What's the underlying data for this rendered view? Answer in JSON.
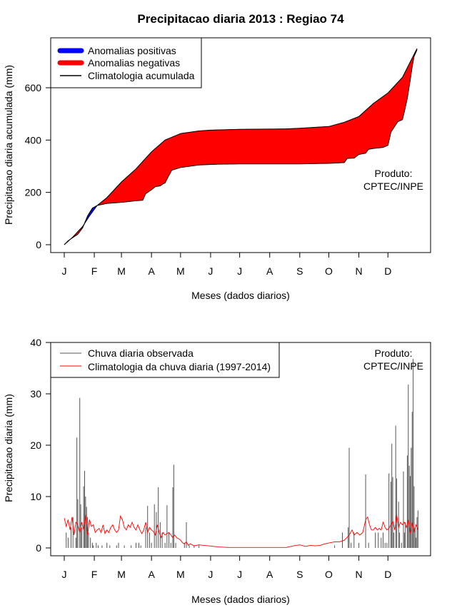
{
  "title": "Precipitacao diaria 2013 : Regiao 74",
  "credit": {
    "line1": "Produto:",
    "line2": "CPTEC/INPE"
  },
  "colors": {
    "positive": "#0000ff",
    "negative": "#ff0000",
    "clim": "#000000",
    "observed": "#555555",
    "clim_daily": "#ff0000"
  },
  "chart_data": [
    {
      "type": "area",
      "name": "accumulated",
      "xlabel": "Meses (dados diarios)",
      "ylabel": "Precipitacao diaria acumulada (mm)",
      "xlim": [
        1,
        365
      ],
      "ylim": [
        0,
        760
      ],
      "yticks": [
        0,
        200,
        400,
        600
      ],
      "months": [
        "J",
        "F",
        "M",
        "A",
        "M",
        "J",
        "J",
        "A",
        "S",
        "O",
        "N",
        "D"
      ],
      "month_days": [
        1,
        32,
        60,
        91,
        121,
        152,
        182,
        213,
        244,
        274,
        305,
        335
      ],
      "legend": [
        "Anomalias positivas",
        "Anomalias negativas",
        "Climatologia acumulada"
      ],
      "climatology_accumulated": [
        [
          1,
          0
        ],
        [
          10,
          30
        ],
        [
          20,
          70
        ],
        [
          27,
          110
        ],
        [
          35,
          150
        ],
        [
          45,
          180
        ],
        [
          60,
          240
        ],
        [
          75,
          290
        ],
        [
          91,
          355
        ],
        [
          105,
          400
        ],
        [
          121,
          425
        ],
        [
          140,
          435
        ],
        [
          152,
          438
        ],
        [
          182,
          441
        ],
        [
          213,
          442
        ],
        [
          230,
          443
        ],
        [
          244,
          445
        ],
        [
          274,
          452
        ],
        [
          290,
          468
        ],
        [
          305,
          490
        ],
        [
          320,
          540
        ],
        [
          335,
          580
        ],
        [
          350,
          640
        ],
        [
          365,
          750
        ]
      ],
      "observed_accumulated": [
        [
          1,
          0
        ],
        [
          5,
          15
        ],
        [
          15,
          40
        ],
        [
          20,
          65
        ],
        [
          25,
          110
        ],
        [
          30,
          140
        ],
        [
          35,
          150
        ],
        [
          45,
          158
        ],
        [
          60,
          162
        ],
        [
          75,
          168
        ],
        [
          82,
          170
        ],
        [
          85,
          195
        ],
        [
          91,
          210
        ],
        [
          95,
          222
        ],
        [
          100,
          225
        ],
        [
          103,
          233
        ],
        [
          105,
          236
        ],
        [
          108,
          258
        ],
        [
          112,
          285
        ],
        [
          121,
          295
        ],
        [
          140,
          305
        ],
        [
          160,
          308
        ],
        [
          182,
          309
        ],
        [
          213,
          309
        ],
        [
          244,
          309
        ],
        [
          260,
          310
        ],
        [
          274,
          311
        ],
        [
          290,
          314
        ],
        [
          293,
          330
        ],
        [
          300,
          331
        ],
        [
          305,
          345
        ],
        [
          312,
          350
        ],
        [
          315,
          365
        ],
        [
          320,
          368
        ],
        [
          330,
          372
        ],
        [
          335,
          380
        ],
        [
          338,
          430
        ],
        [
          345,
          470
        ],
        [
          350,
          478
        ],
        [
          352,
          510
        ],
        [
          355,
          560
        ],
        [
          358,
          630
        ],
        [
          360,
          680
        ],
        [
          362,
          720
        ],
        [
          365,
          745
        ]
      ]
    },
    {
      "type": "bar",
      "name": "daily",
      "xlabel": "Meses (dados diarios)",
      "ylabel": "Precipitacao diaria (mm)",
      "xlim": [
        1,
        365
      ],
      "ylim": [
        0,
        40
      ],
      "yticks": [
        0,
        10,
        20,
        30,
        40
      ],
      "months": [
        "J",
        "F",
        "M",
        "A",
        "M",
        "J",
        "J",
        "A",
        "S",
        "O",
        "N",
        "D"
      ],
      "month_days": [
        1,
        32,
        60,
        91,
        121,
        152,
        182,
        213,
        244,
        274,
        305,
        335
      ],
      "legend": [
        "Chuva diaria observada",
        "Climatologia da chuva diaria (1997-2014)"
      ],
      "observed_daily": [
        [
          3,
          3
        ],
        [
          5,
          2
        ],
        [
          8,
          4
        ],
        [
          10,
          6
        ],
        [
          13,
          2
        ],
        [
          14,
          21.5
        ],
        [
          15,
          9.5
        ],
        [
          17,
          29.2
        ],
        [
          18,
          8.5
        ],
        [
          19,
          4
        ],
        [
          21,
          12
        ],
        [
          22,
          15
        ],
        [
          23,
          10
        ],
        [
          24,
          8
        ],
        [
          25,
          6
        ],
        [
          26,
          3
        ],
        [
          28,
          2
        ],
        [
          30,
          1
        ],
        [
          31,
          0.5
        ],
        [
          34,
          1
        ],
        [
          36,
          0.5
        ],
        [
          40,
          0.5
        ],
        [
          45,
          1
        ],
        [
          48,
          0.5
        ],
        [
          55,
          0.5
        ],
        [
          57,
          1
        ],
        [
          63,
          0.5
        ],
        [
          70,
          0.5
        ],
        [
          75,
          1
        ],
        [
          78,
          1
        ],
        [
          80,
          0.5
        ],
        [
          85,
          4
        ],
        [
          87,
          8.2
        ],
        [
          89,
          3
        ],
        [
          91,
          1
        ],
        [
          94,
          8.5
        ],
        [
          96,
          7
        ],
        [
          98,
          11.8
        ],
        [
          100,
          5
        ],
        [
          102,
          3
        ],
        [
          105,
          1
        ],
        [
          107,
          8.3
        ],
        [
          109,
          3
        ],
        [
          111,
          1
        ],
        [
          113,
          11.8
        ],
        [
          114,
          16.2
        ],
        [
          116,
          1
        ],
        [
          125,
          1
        ],
        [
          127,
          5
        ],
        [
          130,
          0.5
        ],
        [
          135,
          0.5
        ],
        [
          140,
          0.5
        ],
        [
          280,
          0.5
        ],
        [
          288,
          3
        ],
        [
          294,
          4
        ],
        [
          295,
          19.5
        ],
        [
          297,
          1
        ],
        [
          300,
          3
        ],
        [
          305,
          1
        ],
        [
          312,
          14.3
        ],
        [
          315,
          1
        ],
        [
          322,
          3
        ],
        [
          325,
          3
        ],
        [
          328,
          2
        ],
        [
          330,
          3
        ],
        [
          332,
          1
        ],
        [
          334,
          1
        ],
        [
          336,
          14.5
        ],
        [
          338,
          12.9
        ],
        [
          339,
          20.3
        ],
        [
          340,
          13.8
        ],
        [
          341,
          3
        ],
        [
          343,
          23.8
        ],
        [
          344,
          13.5
        ],
        [
          346,
          9
        ],
        [
          347,
          3
        ],
        [
          349,
          1
        ],
        [
          351,
          14.9
        ],
        [
          352,
          3
        ],
        [
          353,
          5
        ],
        [
          355,
          18
        ],
        [
          356,
          31.8
        ],
        [
          357,
          16
        ],
        [
          358,
          14
        ],
        [
          359,
          19.5
        ],
        [
          360,
          26.5
        ],
        [
          361,
          36.8
        ],
        [
          362,
          12
        ],
        [
          363,
          4
        ],
        [
          364,
          2
        ],
        [
          365,
          6
        ],
        [
          366,
          7.3
        ]
      ],
      "climatology_daily": [
        [
          1,
          5.8
        ],
        [
          3,
          4.2
        ],
        [
          5,
          5.5
        ],
        [
          7,
          3.5
        ],
        [
          9,
          6
        ],
        [
          11,
          2.5
        ],
        [
          13,
          5
        ],
        [
          15,
          4.5
        ],
        [
          17,
          3
        ],
        [
          19,
          5
        ],
        [
          21,
          3.5
        ],
        [
          23,
          6.5
        ],
        [
          25,
          2.5
        ],
        [
          27,
          5.5
        ],
        [
          29,
          4.2
        ],
        [
          31,
          4.5
        ],
        [
          33,
          3
        ],
        [
          35,
          3.5
        ],
        [
          37,
          3.8
        ],
        [
          39,
          3
        ],
        [
          41,
          4.5
        ],
        [
          43,
          2.8
        ],
        [
          45,
          3.5
        ],
        [
          47,
          3
        ],
        [
          49,
          4
        ],
        [
          51,
          4.5
        ],
        [
          53,
          3.5
        ],
        [
          55,
          3
        ],
        [
          57,
          3.5
        ],
        [
          59,
          6.2
        ],
        [
          61,
          5.5
        ],
        [
          63,
          4
        ],
        [
          65,
          3.5
        ],
        [
          67,
          4.5
        ],
        [
          69,
          4
        ],
        [
          71,
          5
        ],
        [
          73,
          4
        ],
        [
          75,
          3.5
        ],
        [
          77,
          4.5
        ],
        [
          79,
          3.5
        ],
        [
          81,
          2.8
        ],
        [
          83,
          3.5
        ],
        [
          85,
          5
        ],
        [
          87,
          3
        ],
        [
          89,
          4
        ],
        [
          91,
          3.5
        ],
        [
          93,
          3.2
        ],
        [
          95,
          2.5
        ],
        [
          97,
          4.5
        ],
        [
          99,
          3
        ],
        [
          101,
          2
        ],
        [
          103,
          3
        ],
        [
          105,
          2.5
        ],
        [
          107,
          2.8
        ],
        [
          109,
          3
        ],
        [
          111,
          2.5
        ],
        [
          113,
          2
        ],
        [
          115,
          2.5
        ],
        [
          117,
          2
        ],
        [
          119,
          1.8
        ],
        [
          121,
          1.5
        ],
        [
          123,
          1
        ],
        [
          125,
          0.8
        ],
        [
          127,
          1.2
        ],
        [
          129,
          0.5
        ],
        [
          131,
          0.8
        ],
        [
          135,
          0.4
        ],
        [
          140,
          0.6
        ],
        [
          145,
          0.5
        ],
        [
          150,
          0.4
        ],
        [
          155,
          0.3
        ],
        [
          160,
          0.2
        ],
        [
          170,
          0.1
        ],
        [
          180,
          0.1
        ],
        [
          200,
          0.1
        ],
        [
          220,
          0.1
        ],
        [
          230,
          0.1
        ],
        [
          235,
          0.3
        ],
        [
          240,
          0.5
        ],
        [
          244,
          0.6
        ],
        [
          250,
          0.3
        ],
        [
          255,
          0.5
        ],
        [
          260,
          0.4
        ],
        [
          265,
          0.5
        ],
        [
          270,
          0.8
        ],
        [
          275,
          1
        ],
        [
          280,
          1.2
        ],
        [
          285,
          1.2
        ],
        [
          290,
          1.5
        ],
        [
          295,
          2.5
        ],
        [
          298,
          3.5
        ],
        [
          300,
          2.5
        ],
        [
          303,
          3
        ],
        [
          306,
          2.5
        ],
        [
          309,
          3
        ],
        [
          312,
          5.5
        ],
        [
          314,
          6
        ],
        [
          316,
          4.5
        ],
        [
          318,
          3.5
        ],
        [
          320,
          3.5
        ],
        [
          322,
          4
        ],
        [
          324,
          3.5
        ],
        [
          326,
          3.8
        ],
        [
          328,
          3.5
        ],
        [
          330,
          5
        ],
        [
          332,
          4
        ],
        [
          334,
          3.5
        ],
        [
          336,
          3.8
        ],
        [
          338,
          4.5
        ],
        [
          340,
          5.2
        ],
        [
          342,
          3.5
        ],
        [
          344,
          6.5
        ],
        [
          346,
          4
        ],
        [
          348,
          5
        ],
        [
          350,
          4.5
        ],
        [
          352,
          5
        ],
        [
          354,
          4
        ],
        [
          356,
          5.5
        ],
        [
          358,
          2.8
        ],
        [
          360,
          5
        ],
        [
          362,
          3
        ],
        [
          364,
          4.5
        ],
        [
          366,
          3.5
        ]
      ]
    }
  ]
}
